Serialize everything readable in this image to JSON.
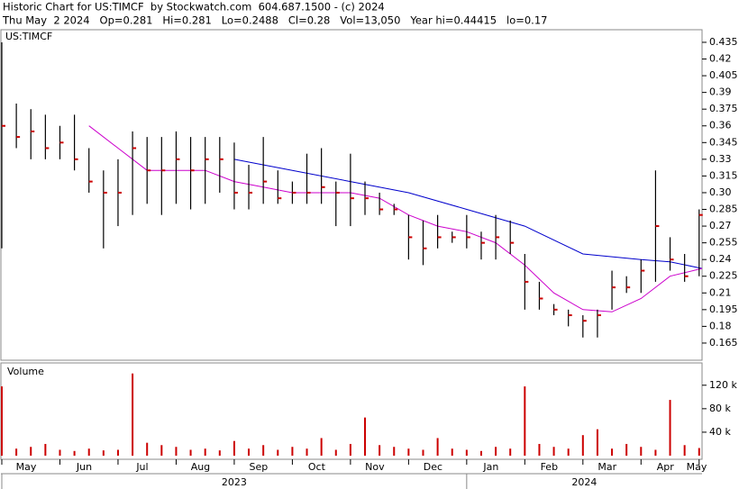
{
  "chart_data": [
    {
      "type": "ohlc",
      "title": "Historic Chart for US:TIMCF  by Stockwatch.com  604.687.1500 - (c) 2024",
      "subtitle": "Thu May  2 2024   Op=0.281   Hi=0.281   Lo=0.2488   Cl=0.28   Vol=13,050   Year hi=0.44415   lo=0.17",
      "symbol": "US:TIMCF",
      "color": "#000000",
      "close_color": "#cc0000",
      "x": [
        0,
        0.25,
        0.5,
        0.75,
        1,
        1.25,
        1.5,
        1.75,
        2,
        2.25,
        2.5,
        2.75,
        3,
        3.25,
        3.5,
        3.75,
        4,
        4.25,
        4.5,
        4.75,
        5,
        5.25,
        5.5,
        5.75,
        6,
        6.25,
        6.5,
        6.75,
        7,
        7.25,
        7.5,
        7.75,
        8,
        8.25,
        8.5,
        8.75,
        9,
        9.25,
        9.5,
        9.75,
        10,
        10.25,
        10.5,
        10.75,
        11,
        11.25,
        11.5,
        11.75,
        12
      ],
      "high": [
        0.435,
        0.38,
        0.375,
        0.37,
        0.36,
        0.37,
        0.34,
        0.32,
        0.33,
        0.355,
        0.35,
        0.35,
        0.355,
        0.35,
        0.35,
        0.35,
        0.345,
        0.325,
        0.35,
        0.32,
        0.31,
        0.335,
        0.34,
        0.31,
        0.335,
        0.31,
        0.3,
        0.29,
        0.28,
        0.275,
        0.28,
        0.265,
        0.28,
        0.265,
        0.28,
        0.275,
        0.245,
        0.22,
        0.2,
        0.195,
        0.19,
        0.195,
        0.23,
        0.225,
        0.24,
        0.32,
        0.26,
        0.245,
        0.285
      ],
      "low": [
        0.25,
        0.34,
        0.33,
        0.33,
        0.33,
        0.32,
        0.3,
        0.25,
        0.27,
        0.28,
        0.29,
        0.28,
        0.29,
        0.285,
        0.29,
        0.3,
        0.285,
        0.285,
        0.29,
        0.29,
        0.29,
        0.29,
        0.29,
        0.27,
        0.27,
        0.28,
        0.28,
        0.28,
        0.24,
        0.235,
        0.25,
        0.255,
        0.25,
        0.24,
        0.24,
        0.245,
        0.195,
        0.195,
        0.19,
        0.18,
        0.17,
        0.17,
        0.195,
        0.21,
        0.21,
        0.22,
        0.23,
        0.22,
        0.225
      ],
      "close": [
        0.36,
        0.35,
        0.355,
        0.34,
        0.345,
        0.33,
        0.31,
        0.3,
        0.3,
        0.34,
        0.32,
        0.32,
        0.33,
        0.32,
        0.33,
        0.33,
        0.3,
        0.3,
        0.31,
        0.295,
        0.3,
        0.3,
        0.305,
        0.3,
        0.295,
        0.295,
        0.285,
        0.285,
        0.26,
        0.25,
        0.26,
        0.26,
        0.26,
        0.255,
        0.26,
        0.255,
        0.22,
        0.205,
        0.195,
        0.19,
        0.185,
        0.19,
        0.215,
        0.215,
        0.23,
        0.27,
        0.24,
        0.225,
        0.28
      ],
      "lines": [
        {
          "color": "#0000cc",
          "x": [
            4,
            5,
            6,
            7,
            8,
            9,
            10,
            11,
            11.5,
            12.05
          ],
          "values": [
            0.33,
            0.32,
            0.31,
            0.3,
            0.285,
            0.27,
            0.245,
            0.24,
            0.238,
            0.232
          ]
        },
        {
          "color": "#cc00cc",
          "x": [
            1.5,
            2,
            2.5,
            3,
            3.5,
            4,
            4.5,
            5,
            5.5,
            6,
            6.5,
            7,
            7.5,
            8,
            8.5,
            9,
            9.5,
            10,
            10.5,
            11,
            11.5,
            12.05
          ],
          "values": [
            0.36,
            0.34,
            0.32,
            0.32,
            0.32,
            0.31,
            0.305,
            0.3,
            0.3,
            0.3,
            0.295,
            0.28,
            0.27,
            0.265,
            0.255,
            0.235,
            0.21,
            0.195,
            0.193,
            0.205,
            0.225,
            0.232
          ]
        }
      ],
      "xlim": [
        0,
        12.05
      ],
      "ylim": [
        0.1496,
        0.4463
      ],
      "yticks": [
        0.165,
        0.18,
        0.195,
        0.21,
        0.225,
        0.24,
        0.255,
        0.27,
        0.285,
        {
          "value": 0.3,
          "label": "0.30"
        },
        0.315,
        0.33,
        0.345,
        0.36,
        0.375,
        0.39,
        0.405,
        0.42,
        0.435
      ],
      "xticks": [
        {
          "value": 0,
          "label": "May"
        },
        {
          "value": 1,
          "label": "Jun"
        },
        {
          "value": 2,
          "label": "Jul"
        },
        {
          "value": 3,
          "label": "Aug"
        },
        {
          "value": 4,
          "label": "Sep"
        },
        {
          "value": 5,
          "label": "Oct"
        },
        {
          "value": 6,
          "label": "Nov"
        },
        {
          "value": 7,
          "label": "Dec"
        },
        {
          "value": 8,
          "label": "Jan"
        },
        {
          "value": 9,
          "label": "Feb"
        },
        {
          "value": 10,
          "label": "Mar"
        },
        {
          "value": 11,
          "label": "Apr"
        },
        {
          "value": 12,
          "label": "May"
        }
      ],
      "year_ticks": [
        {
          "value": 0,
          "label": "2023"
        },
        {
          "value": 8,
          "label": "2024"
        }
      ]
    },
    {
      "type": "bar",
      "title": "Volume",
      "color": "#cc0000",
      "x": [
        0,
        0.25,
        0.5,
        0.75,
        1,
        1.25,
        1.5,
        1.75,
        2,
        2.25,
        2.5,
        2.75,
        3,
        3.25,
        3.5,
        3.75,
        4,
        4.25,
        4.5,
        4.75,
        5,
        5.25,
        5.5,
        5.75,
        6,
        6.25,
        6.5,
        6.75,
        7,
        7.25,
        7.5,
        7.75,
        8,
        8.25,
        8.5,
        8.75,
        9,
        9.25,
        9.5,
        9.75,
        10,
        10.25,
        10.5,
        10.75,
        11,
        11.25,
        11.5,
        11.75,
        12
      ],
      "values": [
        118000,
        12000,
        15000,
        20000,
        10000,
        8000,
        12000,
        9000,
        10000,
        140000,
        22000,
        18000,
        15000,
        10000,
        12000,
        9000,
        25000,
        12000,
        18000,
        10000,
        15000,
        12000,
        30000,
        10000,
        20000,
        65000,
        18000,
        15000,
        12000,
        10000,
        30000,
        12000,
        10000,
        8000,
        15000,
        12000,
        118000,
        20000,
        15000,
        12000,
        35000,
        45000,
        12000,
        20000,
        15000,
        10000,
        95000,
        18000,
        13050
      ],
      "xlim": [
        0,
        12.05
      ],
      "ylim": [
        0,
        158000
      ],
      "yticks": [
        {
          "value": 40000,
          "label": "40 k"
        },
        {
          "value": 80000,
          "label": "80 k"
        },
        {
          "value": 120000,
          "label": "120 k"
        }
      ]
    }
  ]
}
